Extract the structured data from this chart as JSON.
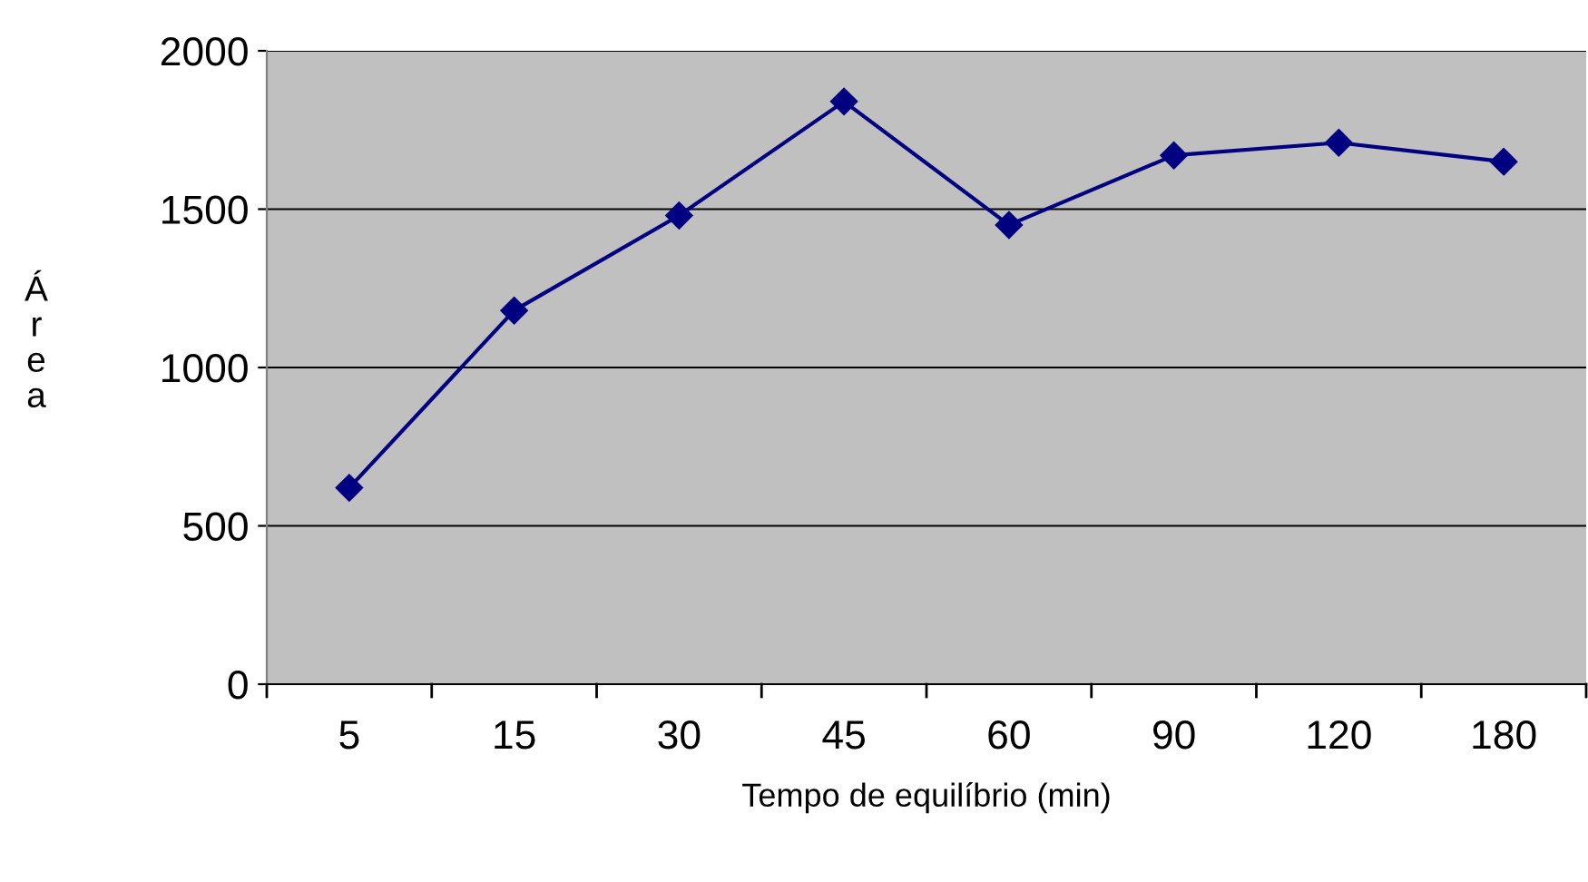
{
  "chart_data": {
    "type": "line",
    "xlabel": "Tempo de equilíbrio (min)",
    "ylabel": "Área",
    "categories": [
      "5",
      "15",
      "30",
      "45",
      "60",
      "90",
      "120",
      "180"
    ],
    "series": [
      {
        "color": "#000080",
        "values": [
          620,
          1180,
          1480,
          1840,
          1450,
          1670,
          1710,
          1650
        ]
      }
    ],
    "ylim": [
      0,
      2000
    ],
    "yticks": [
      0,
      500,
      1000,
      1500,
      2000
    ],
    "grid": "y",
    "marker": "diamond",
    "line_style": "solid",
    "legend": false
  }
}
